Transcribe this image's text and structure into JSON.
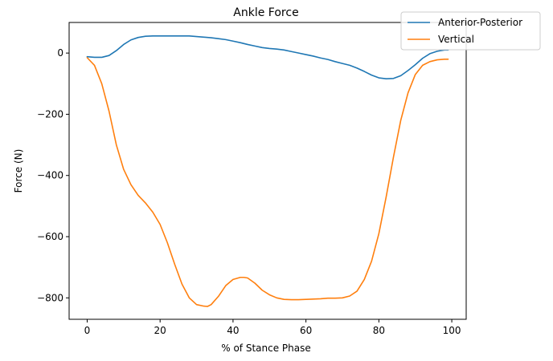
{
  "chart_data": {
    "type": "line",
    "title": "Ankle Force",
    "xlabel": "% of Stance Phase",
    "ylabel": "Force (N)",
    "xlim": [
      -4.95,
      103.95
    ],
    "ylim": [
      -870,
      100
    ],
    "xticks": [
      0,
      20,
      40,
      60,
      80,
      100
    ],
    "xtick_labels": [
      "0",
      "20",
      "40",
      "60",
      "80",
      "100"
    ],
    "yticks": [
      -800,
      -600,
      -400,
      -200,
      0
    ],
    "ytick_labels": [
      "−800",
      "−600",
      "−400",
      "−200",
      "0"
    ],
    "grid": false,
    "legend_position": "top-right",
    "series": [
      {
        "name": "Anterior-Posterior",
        "color": "#1f77b4",
        "x": [
          0,
          2,
          4,
          6,
          8,
          10,
          12,
          14,
          16,
          18,
          20,
          22,
          24,
          26,
          28,
          30,
          32,
          34,
          36,
          38,
          40,
          42,
          44,
          46,
          48,
          50,
          52,
          54,
          56,
          58,
          60,
          62,
          64,
          66,
          68,
          70,
          72,
          74,
          76,
          78,
          80,
          82,
          84,
          86,
          88,
          90,
          92,
          94,
          96,
          98,
          99
        ],
        "y": [
          -12,
          -14,
          -14,
          -8,
          8,
          28,
          43,
          51,
          55,
          56,
          56,
          56,
          56,
          56,
          56,
          54,
          52,
          50,
          47,
          44,
          39,
          34,
          28,
          23,
          18,
          15,
          13,
          10,
          5,
          0,
          -5,
          -10,
          -16,
          -21,
          -28,
          -34,
          -40,
          -49,
          -60,
          -72,
          -81,
          -84,
          -83,
          -74,
          -57,
          -38,
          -17,
          -2,
          6,
          10,
          10
        ]
      },
      {
        "name": "Vertical",
        "color": "#ff7f0e",
        "x": [
          0,
          2,
          4,
          6,
          8,
          10,
          12,
          14,
          16,
          18,
          20,
          22,
          24,
          26,
          28,
          30,
          32,
          33,
          34,
          36,
          38,
          40,
          42,
          43,
          44,
          46,
          48,
          50,
          52,
          54,
          56,
          58,
          60,
          62,
          64,
          66,
          68,
          70,
          72,
          74,
          76,
          78,
          80,
          82,
          84,
          86,
          88,
          90,
          92,
          94,
          96,
          98,
          99
        ],
        "y": [
          -15,
          -40,
          -100,
          -190,
          -300,
          -380,
          -430,
          -465,
          -490,
          -520,
          -560,
          -620,
          -690,
          -755,
          -800,
          -822,
          -827,
          -828,
          -822,
          -795,
          -760,
          -740,
          -733,
          -733,
          -735,
          -752,
          -775,
          -790,
          -800,
          -805,
          -806,
          -806,
          -805,
          -804,
          -803,
          -801,
          -801,
          -800,
          -794,
          -778,
          -740,
          -680,
          -590,
          -470,
          -340,
          -220,
          -130,
          -70,
          -40,
          -28,
          -22,
          -20,
          -20
        ]
      }
    ]
  }
}
